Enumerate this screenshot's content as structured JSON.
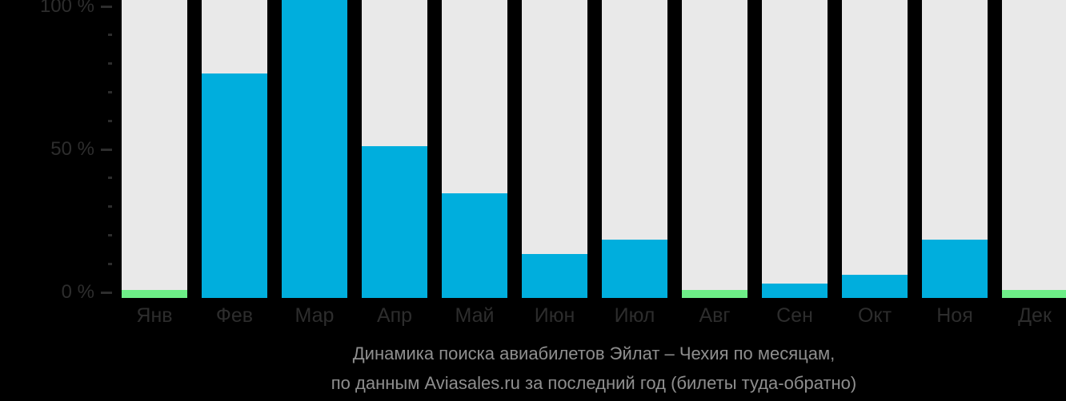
{
  "chart_data": {
    "type": "bar",
    "title": "Динамика поиска авиабилетов Эйлат – Чехия по месяцам, по данным Aviasales.ru за последний год (билеты туда-обратно)",
    "title_lines": [
      "Динамика поиска авиабилетов Эйлат – Чехия по месяцам,",
      "по данным Aviasales.ru за последний год (билеты туда-обратно)"
    ],
    "categories": [
      "Янв",
      "Фев",
      "Мар",
      "Апр",
      "Май",
      "Июн",
      "Июл",
      "Авг",
      "Сен",
      "Окт",
      "Ноя",
      "Дек"
    ],
    "values": [
      2,
      77,
      100,
      52,
      36,
      15,
      20,
      2,
      5,
      8,
      20,
      2
    ],
    "bar_colors": [
      "green",
      "blue",
      "blue",
      "blue",
      "blue",
      "blue",
      "blue",
      "green",
      "blue",
      "blue",
      "blue",
      "green"
    ],
    "xlabel": "",
    "ylabel": "%",
    "ylim": [
      0,
      100
    ],
    "ytick_step": 10,
    "yticks_labeled": [
      0,
      50,
      100
    ],
    "ytick_labels": [
      "0 %",
      "50 %",
      "100 %"
    ],
    "legend": "none",
    "grid": "off"
  },
  "colors": {
    "background": "#000000",
    "track": "#e9e9e9",
    "blue": "#00aedd",
    "green": "#6dee87",
    "axis_text": "#2d2d2d",
    "month_text": "#2d2d2d",
    "title_text": "#8f8f8f"
  }
}
